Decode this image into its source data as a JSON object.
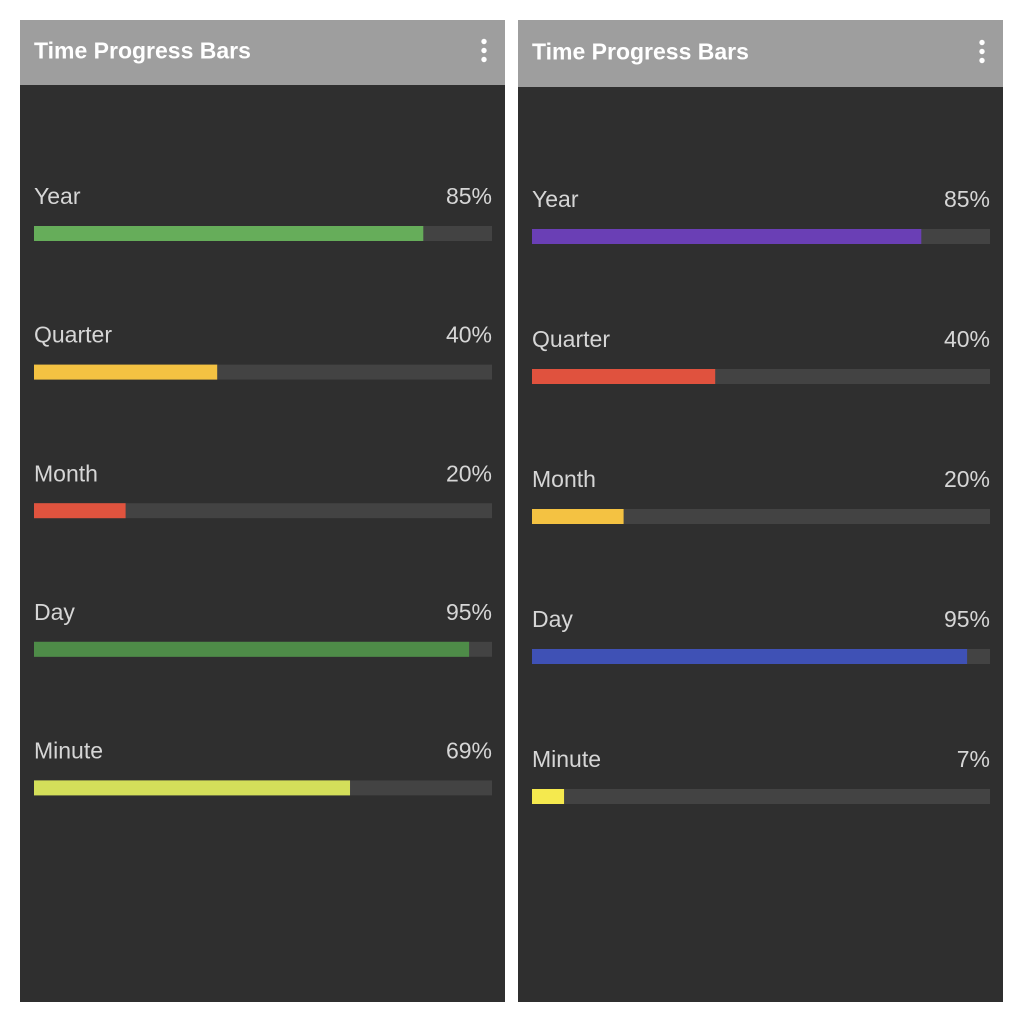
{
  "screens": [
    {
      "title": "Time Progress Bars",
      "items": [
        {
          "label": "Year",
          "value": 85,
          "value_label": "85%",
          "color": "#66ad5a"
        },
        {
          "label": "Quarter",
          "value": 40,
          "value_label": "40%",
          "color": "#f4c242"
        },
        {
          "label": "Month",
          "value": 20,
          "value_label": "20%",
          "color": "#e0533e"
        },
        {
          "label": "Day",
          "value": 95,
          "value_label": "95%",
          "color": "#4e8c48"
        },
        {
          "label": "Minute",
          "value": 69,
          "value_label": "69%",
          "color": "#d4df5a"
        }
      ]
    },
    {
      "title": "Time Progress Bars",
      "items": [
        {
          "label": "Year",
          "value": 85,
          "value_label": "85%",
          "color": "#6a3fb5"
        },
        {
          "label": "Quarter",
          "value": 40,
          "value_label": "40%",
          "color": "#e0523e"
        },
        {
          "label": "Month",
          "value": 20,
          "value_label": "20%",
          "color": "#f4c242"
        },
        {
          "label": "Day",
          "value": 95,
          "value_label": "95%",
          "color": "#3f51b5"
        },
        {
          "label": "Minute",
          "value": 7,
          "value_label": "7%",
          "color": "#f5e94e"
        }
      ]
    }
  ]
}
